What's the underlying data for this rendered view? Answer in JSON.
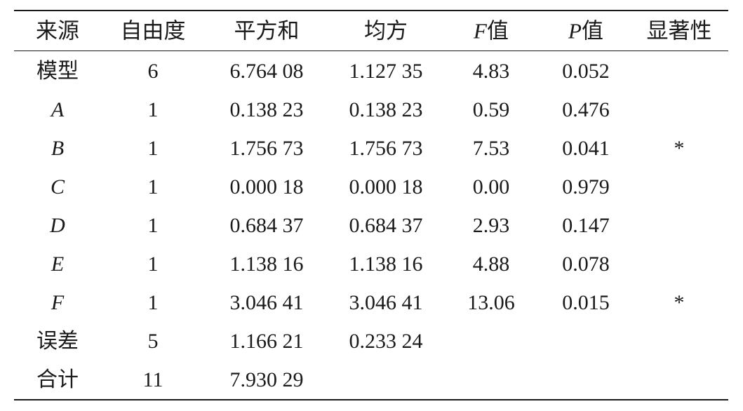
{
  "table": {
    "header": [
      "来源",
      "自由度",
      "平方和",
      "均方",
      "F值",
      "P值",
      "显著性"
    ],
    "rows": [
      {
        "source": "模型",
        "df": "6",
        "ss": "6.764 08",
        "ms": "1.127 35",
        "f": "4.83",
        "p": "0.052"
      },
      {
        "source": "A",
        "df": "1",
        "ss": "0.138 23",
        "ms": "0.138 23",
        "f": "0.59",
        "p": "0.476"
      },
      {
        "source": "B",
        "df": "1",
        "ss": "1.756 73",
        "ms": "1.756 73",
        "f": "7.53",
        "p": "0.041",
        "sig": "*"
      },
      {
        "source": "C",
        "df": "1",
        "ss": "0.000 18",
        "ms": "0.000 18",
        "f": "0.00",
        "p": "0.979"
      },
      {
        "source": "D",
        "df": "1",
        "ss": "0.684 37",
        "ms": "0.684 37",
        "f": "2.93",
        "p": "0.147"
      },
      {
        "source": "E",
        "df": "1",
        "ss": "1.138 16",
        "ms": "1.138 16",
        "f": "4.88",
        "p": "0.078"
      },
      {
        "source": "F",
        "df": "1",
        "ss": "3.046 41",
        "ms": "3.046 41",
        "f": "13.06",
        "p": "0.015",
        "sig": "*"
      },
      {
        "source": "误差",
        "df": "5",
        "ss": "1.166 21",
        "ms": "0.233 24"
      },
      {
        "source": "合计",
        "df": "11",
        "ss": "7.930 29"
      }
    ]
  }
}
